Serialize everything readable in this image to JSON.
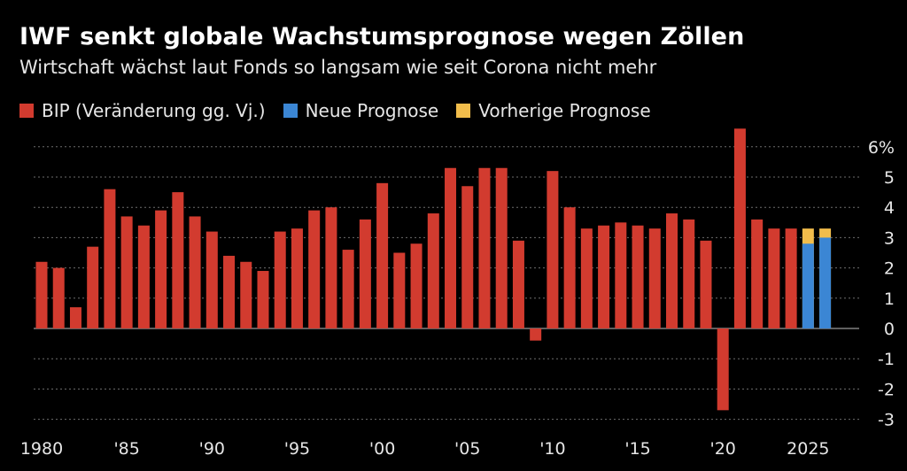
{
  "title": "IWF senkt globale Wachstumsprognose wegen Zöllen",
  "subtitle": "Wirtschaft wächst laut Fonds so langsam wie seit Corona nicht mehr",
  "colors": {
    "background": "#000000",
    "gdp": "#d23b2f",
    "new_forecast": "#3b86d4",
    "previous_forecast": "#f2bd4b",
    "grid": "#6e6e6e",
    "zero_line": "#9a9a9a"
  },
  "chart_data": {
    "type": "bar",
    "legend_position": "top-left",
    "grid": true,
    "ylim": [
      -3,
      6.5
    ],
    "y_ticks": [
      {
        "value": 6,
        "label": "6%"
      },
      {
        "value": 5,
        "label": "5"
      },
      {
        "value": 4,
        "label": "4"
      },
      {
        "value": 3,
        "label": "3"
      },
      {
        "value": 2,
        "label": "2"
      },
      {
        "value": 1,
        "label": "1"
      },
      {
        "value": 0,
        "label": "0"
      },
      {
        "value": -1,
        "label": "-1"
      },
      {
        "value": -2,
        "label": "-2"
      },
      {
        "value": -3,
        "label": "-3"
      }
    ],
    "x_ticks": [
      {
        "value": 1980,
        "label": "1980"
      },
      {
        "value": 1985,
        "label": "'85"
      },
      {
        "value": 1990,
        "label": "'90"
      },
      {
        "value": 1995,
        "label": "'95"
      },
      {
        "value": 2000,
        "label": "'00"
      },
      {
        "value": 2005,
        "label": "'05"
      },
      {
        "value": 2010,
        "label": "'10"
      },
      {
        "value": 2015,
        "label": "'15"
      },
      {
        "value": 2020,
        "label": "'20"
      },
      {
        "value": 2025,
        "label": "2025"
      }
    ],
    "series": [
      {
        "name": "BIP (Veränderung gg. Vj.)",
        "color": "#d23b2f",
        "x": [
          1980,
          1981,
          1982,
          1983,
          1984,
          1985,
          1986,
          1987,
          1988,
          1989,
          1990,
          1991,
          1992,
          1993,
          1994,
          1995,
          1996,
          1997,
          1998,
          1999,
          2000,
          2001,
          2002,
          2003,
          2004,
          2005,
          2006,
          2007,
          2008,
          2009,
          2010,
          2011,
          2012,
          2013,
          2014,
          2015,
          2016,
          2017,
          2018,
          2019,
          2020,
          2021,
          2022,
          2023,
          2024
        ],
        "values": [
          2.2,
          2.0,
          0.7,
          2.7,
          4.6,
          3.7,
          3.4,
          3.9,
          4.5,
          3.7,
          3.2,
          2.4,
          2.2,
          1.9,
          3.2,
          3.3,
          3.9,
          4.0,
          2.6,
          3.6,
          4.8,
          2.5,
          2.8,
          3.8,
          5.3,
          4.7,
          5.3,
          5.3,
          2.9,
          -0.4,
          5.2,
          4.0,
          3.3,
          3.4,
          3.5,
          3.4,
          3.3,
          3.8,
          3.6,
          2.9,
          -2.7,
          6.6,
          3.6,
          3.3,
          3.3
        ]
      },
      {
        "name": "Neue Prognose",
        "color": "#3b86d4",
        "x": [
          2025,
          2026
        ],
        "values": [
          2.8,
          3.0
        ]
      },
      {
        "name": "Vorherige Prognose",
        "color": "#f2bd4b",
        "x": [
          2025,
          2026
        ],
        "values": [
          3.3,
          3.3
        ]
      }
    ]
  }
}
